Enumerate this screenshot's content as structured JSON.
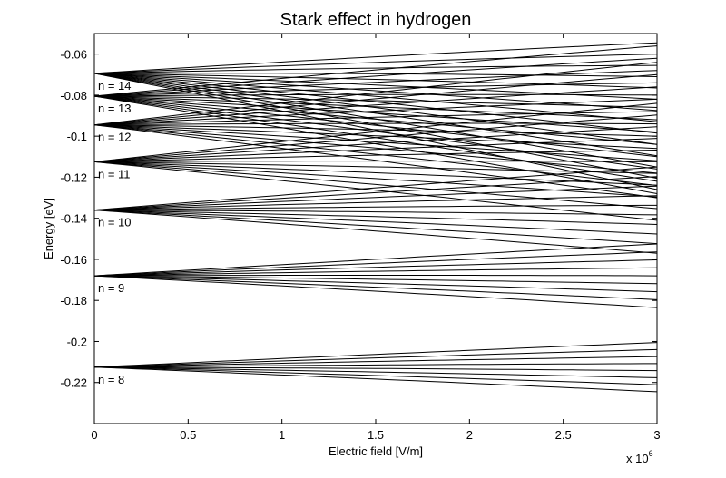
{
  "chart_data": {
    "type": "line",
    "title": "Stark effect in hydrogen",
    "xlabel": "Electric field [V/m]",
    "ylabel": "Energy [eV]",
    "x_multiplier": "x 10",
    "x_multiplier_exp": "6",
    "xlim": [
      0,
      3
    ],
    "ylim": [
      -0.24,
      -0.05
    ],
    "xticks": [
      0,
      0.5,
      1,
      1.5,
      2,
      2.5,
      3
    ],
    "xtick_labels": [
      "0",
      "0.5",
      "1",
      "1.5",
      "2",
      "2.5",
      "3"
    ],
    "yticks": [
      -0.22,
      -0.2,
      -0.18,
      -0.16,
      -0.14,
      -0.12,
      -0.1,
      -0.08,
      -0.06
    ],
    "ytick_labels": [
      "-0.22",
      "-0.2",
      "-0.18",
      "-0.16",
      "-0.14",
      "-0.12",
      "-0.1",
      "-0.08",
      "-0.06"
    ],
    "grid": false,
    "line_color": "#000000",
    "manifolds": [
      {
        "n": 8,
        "label": "n =  8",
        "energy": -0.2125,
        "energy_at_xmax": [
          -0.2005,
          -0.2245
        ]
      },
      {
        "n": 9,
        "label": "n =  9",
        "energy": -0.168,
        "energy_at_xmax": [
          -0.1525,
          -0.1835
        ]
      },
      {
        "n": 10,
        "label": "n = 10",
        "energy": -0.136,
        "energy_at_xmax": [
          -0.115,
          -0.157
        ]
      },
      {
        "n": 11,
        "label": "n = 11",
        "energy": -0.1125,
        "energy_at_xmax": [
          -0.084,
          -0.141
        ]
      },
      {
        "n": 12,
        "label": "n = 12",
        "energy": -0.0945,
        "energy_at_xmax": [
          -0.064,
          -0.13
        ]
      },
      {
        "n": 13,
        "label": "n = 13",
        "energy": -0.0805,
        "energy_at_xmax": [
          -0.056,
          -0.128
        ]
      },
      {
        "n": 14,
        "label": "n = 14",
        "energy": -0.0694,
        "energy_at_xmax": [
          -0.0545,
          -0.126
        ]
      }
    ]
  }
}
